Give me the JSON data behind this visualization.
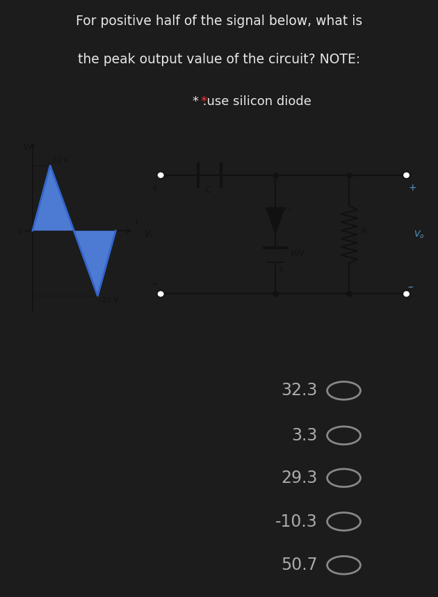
{
  "bg_color": "#1c1c1c",
  "panel_bg": "#b8b8b8",
  "title_color": "#e8e8e8",
  "star_color": "#ff3333",
  "choice_color": "#aaaaaa",
  "circle_color": "#888888",
  "wave_face": "#5588ee",
  "wave_edge": "#3366cc",
  "circuit_line": "#111111",
  "vo_color": "#5599cc",
  "title_line1": "For positive half of the signal below, what is",
  "title_line2": "the peak output value of the circuit? NOTE:",
  "star_note": ".use silicon diode",
  "choices": [
    "32.3",
    "3.3",
    "29.3",
    "-10.3",
    "50.7"
  ]
}
